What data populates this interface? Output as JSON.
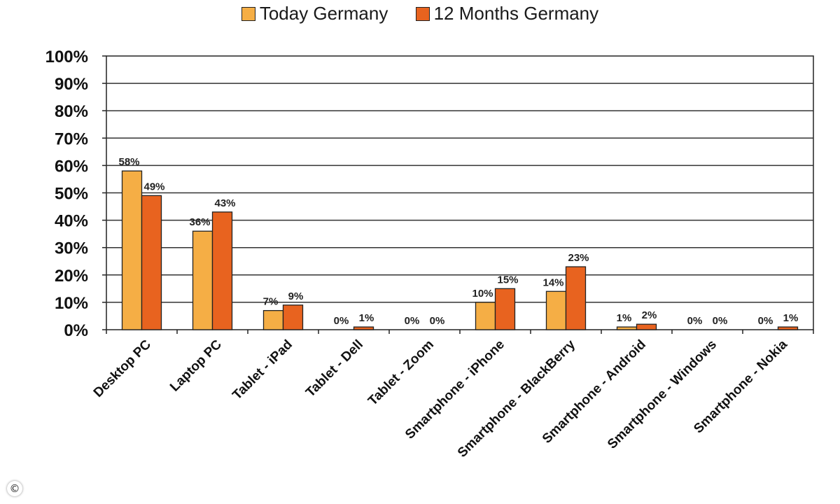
{
  "chart_data": {
    "type": "bar",
    "categories": [
      "Desktop PC",
      "Laptop PC",
      "Tablet - iPad",
      "Tablet - Dell",
      "Tablet - Zoom",
      "Smartphone - iPhone",
      "Smartphone - BlackBerry",
      "Smartphone - Android",
      "Smartphone - Windows",
      "Smartphone - Nokia"
    ],
    "series": [
      {
        "name": "Today Germany",
        "color": "#F5AE45",
        "values": [
          58,
          36,
          7,
          0,
          0,
          10,
          14,
          1,
          0,
          0
        ]
      },
      {
        "name": "12 Months Germany",
        "color": "#E8631F",
        "values": [
          49,
          43,
          9,
          1,
          0,
          15,
          23,
          2,
          0,
          1
        ]
      }
    ],
    "data_labels": [
      [
        "58%",
        "36%",
        "7%",
        "0%",
        "0%",
        "10%",
        "14%",
        "1%",
        "0%",
        "0%"
      ],
      [
        "49%",
        "43%",
        "9%",
        "1%",
        "0%",
        "15%",
        "23%",
        "2%",
        "0%",
        "1%"
      ]
    ],
    "yticks": [
      "0%",
      "10%",
      "20%",
      "30%",
      "40%",
      "50%",
      "60%",
      "70%",
      "80%",
      "90%",
      "100%"
    ],
    "ylim": [
      0,
      100
    ],
    "title": "",
    "xlabel": "",
    "ylabel": "",
    "grid": true,
    "legend_position": "top-center"
  },
  "copyright_symbol": "©"
}
